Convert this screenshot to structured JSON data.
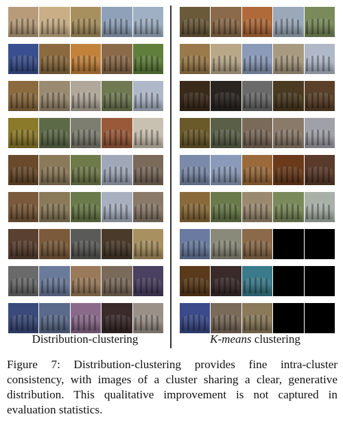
{
  "caption": {
    "text": "Figure 7: Distribution-clustering provides fine intra-cluster consistency, with images of a cluster sharing a clear, generative distribution. This qualitative improvement is not captured in evaluation statistics."
  },
  "panels": {
    "left": {
      "label": "Distribution-clustering"
    },
    "right": {
      "label_em": "K-means",
      "label_rest": " clustering"
    }
  },
  "thumb_colors": {
    "left": [
      [
        "#b89c7a",
        "#c9ae86",
        "#a88f5e",
        "#8fa1b8",
        "#9fb0c4"
      ],
      [
        "#3a4f8f",
        "#8a6a3e",
        "#c2823a",
        "#8b6a4a",
        "#5f7f3a"
      ],
      [
        "#8a6a3e",
        "#9a8a70",
        "#b0a89a",
        "#6f7a52",
        "#aeb8c8"
      ],
      [
        "#8b7a2a",
        "#5d6a48",
        "#7d7d70",
        "#9a5a3a",
        "#c8c0b0"
      ],
      [
        "#6a4a2a",
        "#8b7a5a",
        "#6f7a4a",
        "#a0a8b8",
        "#7a6a5a"
      ],
      [
        "#7a5a3a",
        "#8a7a5a",
        "#6a7a4a",
        "#a8b0c0",
        "#8a7a6a"
      ],
      [
        "#5a4030",
        "#7a5a3a",
        "#5a5a58",
        "#4a3a2a",
        "#a89060"
      ],
      [
        "#6a6a6a",
        "#6a7a9a",
        "#9a7a5a",
        "#7a6a5a",
        "#4a4060"
      ],
      [
        "#3a4a7a",
        "#5a6a8a",
        "#8a6a8a",
        "#3a2a2a",
        "#9a9088"
      ]
    ],
    "right": [
      [
        "#6a5a3a",
        "#8a6a4a",
        "#b06a3a",
        "#9aa8b8",
        "#7a8a5a"
      ],
      [
        "#9a7a4a",
        "#b8a888",
        "#8a9ab8",
        "#a89a80",
        "#b0b8c8"
      ],
      [
        "#3a2a1a",
        "#2a2420",
        "#6a6a6a",
        "#4a3a20",
        "#5a4028"
      ],
      [
        "#6a5a2a",
        "#5a6048",
        "#7a6a5a",
        "#8a7a6a",
        "#a0a0a8"
      ],
      [
        "#7a8aa8",
        "#8a9ab8",
        "#9a6a3a",
        "#6a3a1a",
        "#5a3a2a"
      ],
      [
        "#8a6a3a",
        "#6a7a4a",
        "#9a8a70",
        "#7a8a5a",
        "#a8b0a8"
      ],
      [
        "#6a7aa0",
        "#8a8a7a",
        "#8a6a4a",
        "empty",
        "empty"
      ],
      [
        "#5a3a1a",
        "#3a2a2a",
        "#3a7a8a",
        "empty",
        "empty"
      ],
      [
        "#3a4a8a",
        "#7a6a5a",
        "#8a7a5a",
        "empty",
        "empty"
      ]
    ]
  }
}
